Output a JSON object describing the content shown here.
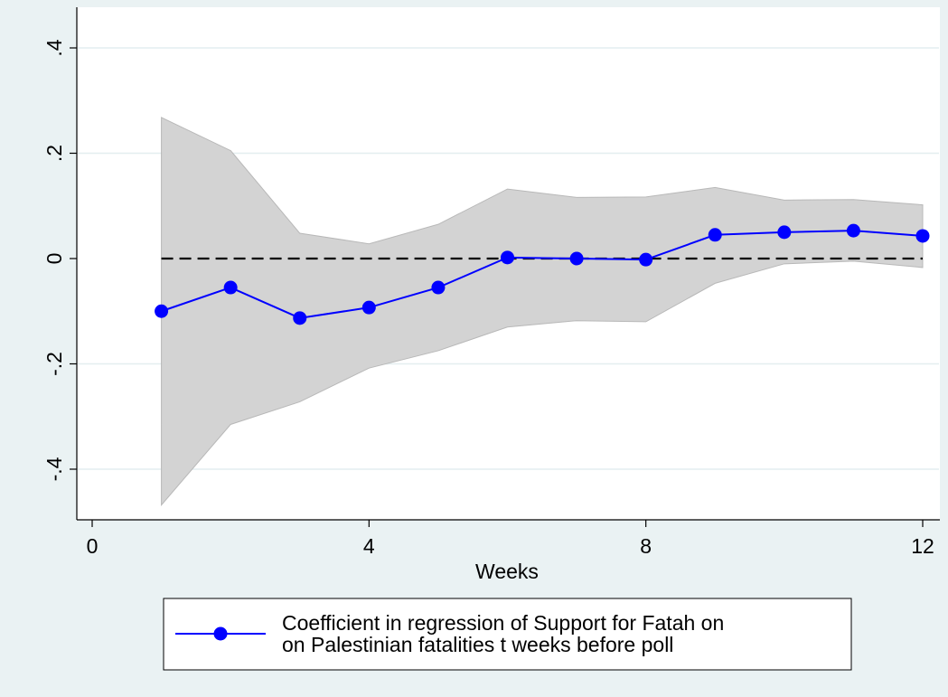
{
  "chart_data": {
    "type": "line",
    "title": "",
    "xlabel": "Weeks",
    "ylabel": "",
    "xlim": [
      0,
      12
    ],
    "ylim": [
      -0.45,
      0.4
    ],
    "x_ticks": [
      0,
      4,
      8,
      12
    ],
    "x_tick_labels": [
      "0",
      "4",
      "8",
      "12"
    ],
    "y_ticks": [
      -0.4,
      -0.2,
      0,
      0.2,
      0.4
    ],
    "y_tick_labels": [
      "-.4",
      "-.2",
      "0",
      ".2",
      ".4"
    ],
    "grid": true,
    "reference_line": {
      "y": 0,
      "style": "dashed",
      "color": "#000000"
    },
    "band_color": "#d3d3d3",
    "line_color": "#0000ff",
    "x": [
      1,
      2,
      3,
      4,
      5,
      6,
      7,
      8,
      9,
      10,
      11,
      12
    ],
    "series": [
      {
        "name": "Coefficient in regression of Support for Fatah on on Palestinian fatalities t weeks before poll",
        "values": [
          -0.1,
          -0.055,
          -0.113,
          -0.093,
          -0.055,
          0.002,
          0.0,
          -0.002,
          0.045,
          0.05,
          0.053,
          0.043
        ]
      }
    ],
    "confidence_band": {
      "upper": [
        0.268,
        0.205,
        0.048,
        0.028,
        0.065,
        0.132,
        0.116,
        0.117,
        0.135,
        0.111,
        0.112,
        0.102
      ],
      "lower": [
        -0.468,
        -0.315,
        -0.272,
        -0.208,
        -0.175,
        -0.13,
        -0.118,
        -0.12,
        -0.047,
        -0.01,
        -0.005,
        -0.017
      ]
    },
    "legend": {
      "position": "bottom",
      "label_line1": "Coefficient in regression of Support for Fatah on",
      "label_line2": "on Palestinian fatalities t weeks before poll"
    }
  }
}
